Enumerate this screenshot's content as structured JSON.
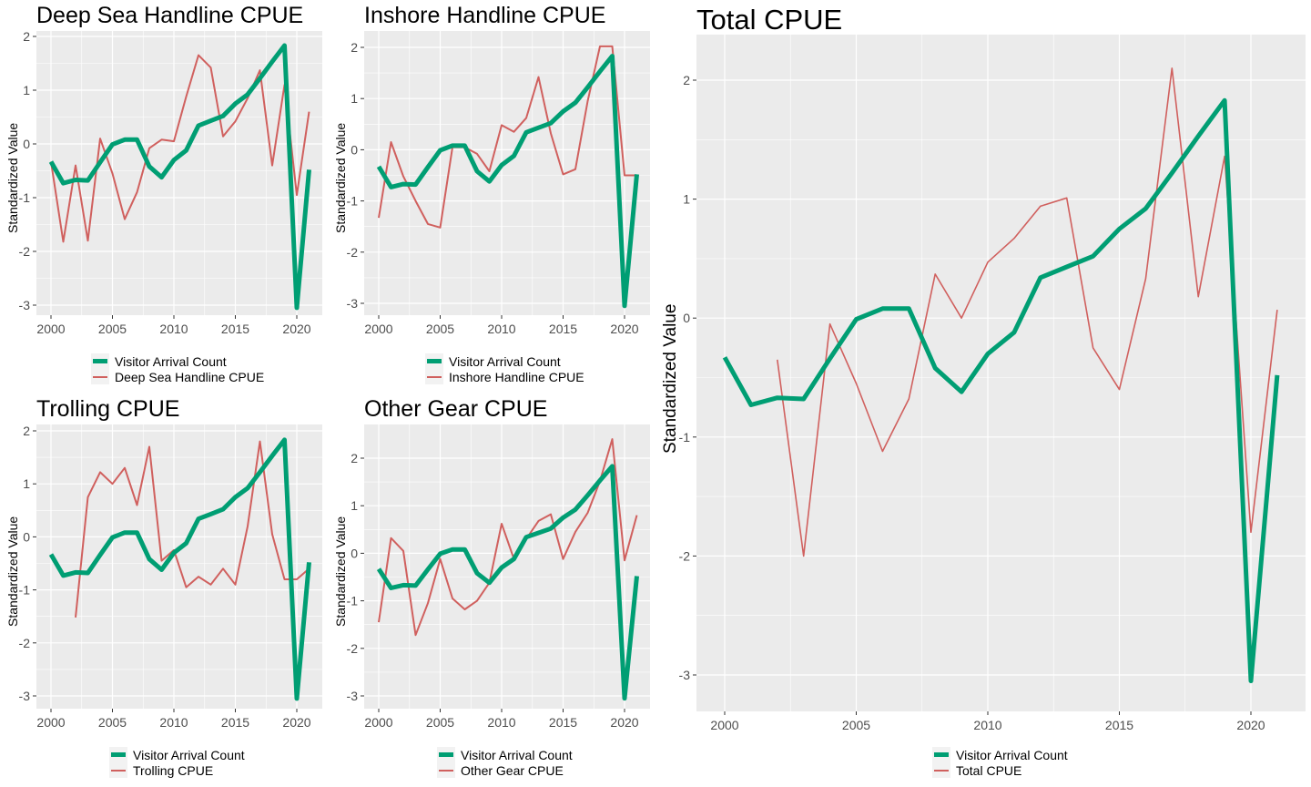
{
  "colors": {
    "visitor": "#009e73",
    "cpue": "#d0605e",
    "panel_bg": "#ebebeb",
    "grid": "#ffffff"
  },
  "ylabel": "Standardized Value",
  "visitor_legend": "Visitor Arrival Count",
  "chart_data": [
    {
      "type": "line",
      "title": "Deep Sea Handline CPUE",
      "ylabel": "Standardized Value",
      "xlim": [
        2000,
        2021
      ],
      "ylim": [
        -3.05,
        1.85
      ],
      "x_ticks": [
        2000,
        2005,
        2010,
        2015,
        2020
      ],
      "y_ticks": [
        -3,
        -2,
        -1,
        0,
        1,
        2
      ],
      "legend_position": "bottom",
      "series": [
        {
          "name": "Visitor Arrival Count",
          "x": [
            2000,
            2001,
            2002,
            2003,
            2004,
            2005,
            2006,
            2007,
            2008,
            2009,
            2010,
            2011,
            2012,
            2013,
            2014,
            2015,
            2016,
            2017,
            2018,
            2019,
            2020,
            2021
          ],
          "values": [
            -0.33,
            -0.73,
            -0.67,
            -0.68,
            -0.34,
            -0.01,
            0.08,
            0.08,
            -0.42,
            -0.62,
            -0.3,
            -0.12,
            0.34,
            0.43,
            0.52,
            0.75,
            0.92,
            1.22,
            1.53,
            1.83,
            -3.05,
            -0.48
          ]
        },
        {
          "name": "Deep Sea Handline CPUE",
          "x": [
            2000,
            2001,
            2002,
            2003,
            2004,
            2005,
            2006,
            2007,
            2008,
            2009,
            2010,
            2011,
            2012,
            2013,
            2014,
            2015,
            2016,
            2017,
            2018,
            2019,
            2020,
            2021
          ],
          "values": [
            -0.33,
            -1.82,
            -0.4,
            -1.8,
            0.1,
            -0.55,
            -1.4,
            -0.9,
            -0.08,
            0.08,
            0.05,
            0.88,
            1.65,
            1.42,
            0.14,
            0.42,
            0.85,
            1.37,
            -0.4,
            1.1,
            -0.95,
            0.6
          ]
        }
      ]
    },
    {
      "type": "line",
      "title": "Inshore Handline CPUE",
      "ylabel": "Standardized Value",
      "xlim": [
        2000,
        2021
      ],
      "ylim": [
        -3.05,
        2.02
      ],
      "x_ticks": [
        2000,
        2005,
        2010,
        2015,
        2020
      ],
      "y_ticks": [
        -3,
        -2,
        -1,
        0,
        1,
        2
      ],
      "legend_position": "bottom",
      "series": [
        {
          "name": "Visitor Arrival Count",
          "x": [
            2000,
            2001,
            2002,
            2003,
            2004,
            2005,
            2006,
            2007,
            2008,
            2009,
            2010,
            2011,
            2012,
            2013,
            2014,
            2015,
            2016,
            2017,
            2018,
            2019,
            2020,
            2021
          ],
          "values": [
            -0.33,
            -0.73,
            -0.67,
            -0.68,
            -0.34,
            -0.01,
            0.08,
            0.08,
            -0.42,
            -0.62,
            -0.3,
            -0.12,
            0.34,
            0.43,
            0.52,
            0.75,
            0.92,
            1.22,
            1.53,
            1.83,
            -3.05,
            -0.48
          ]
        },
        {
          "name": "Inshore Handline CPUE",
          "x": [
            2000,
            2001,
            2002,
            2003,
            2004,
            2005,
            2006,
            2007,
            2008,
            2009,
            2010,
            2011,
            2012,
            2013,
            2014,
            2015,
            2016,
            2017,
            2018,
            2019,
            2020,
            2021
          ],
          "values": [
            -1.33,
            0.15,
            -0.52,
            -1.0,
            -1.45,
            -1.52,
            0.05,
            0.05,
            -0.08,
            -0.42,
            0.48,
            0.35,
            0.62,
            1.42,
            0.32,
            -0.48,
            -0.38,
            0.95,
            2.02,
            2.02,
            -0.5,
            -0.5
          ]
        }
      ]
    },
    {
      "type": "line",
      "title": "Trolling CPUE",
      "ylabel": "Standardized Value",
      "xlim": [
        2000,
        2021
      ],
      "ylim": [
        -3.05,
        1.85
      ],
      "x_ticks": [
        2000,
        2005,
        2010,
        2015,
        2020
      ],
      "y_ticks": [
        -3,
        -2,
        -1,
        0,
        1,
        2
      ],
      "legend_position": "bottom",
      "series": [
        {
          "name": "Visitor Arrival Count",
          "x": [
            2000,
            2001,
            2002,
            2003,
            2004,
            2005,
            2006,
            2007,
            2008,
            2009,
            2010,
            2011,
            2012,
            2013,
            2014,
            2015,
            2016,
            2017,
            2018,
            2019,
            2020,
            2021
          ],
          "values": [
            -0.33,
            -0.73,
            -0.67,
            -0.68,
            -0.34,
            -0.01,
            0.08,
            0.08,
            -0.42,
            -0.62,
            -0.3,
            -0.12,
            0.34,
            0.43,
            0.52,
            0.75,
            0.92,
            1.22,
            1.53,
            1.83,
            -3.05,
            -0.48
          ]
        },
        {
          "name": "Trolling CPUE",
          "x": [
            2002,
            2003,
            2004,
            2005,
            2006,
            2007,
            2008,
            2009,
            2010,
            2011,
            2012,
            2013,
            2014,
            2015,
            2016,
            2017,
            2018,
            2019,
            2020,
            2021
          ],
          "values": [
            -1.52,
            0.75,
            1.22,
            1.0,
            1.3,
            0.6,
            1.7,
            -0.45,
            -0.25,
            -0.95,
            -0.75,
            -0.9,
            -0.6,
            -0.9,
            0.2,
            1.8,
            0.05,
            -0.8,
            -0.8,
            -0.6
          ]
        }
      ]
    },
    {
      "type": "line",
      "title": "Other Gear CPUE",
      "ylabel": "Standardized Value",
      "xlim": [
        2000,
        2021
      ],
      "ylim": [
        -3.05,
        2.4
      ],
      "x_ticks": [
        2000,
        2005,
        2010,
        2015,
        2020
      ],
      "y_ticks": [
        -3,
        -2,
        -1,
        0,
        1,
        2
      ],
      "legend_position": "bottom",
      "series": [
        {
          "name": "Visitor Arrival Count",
          "x": [
            2000,
            2001,
            2002,
            2003,
            2004,
            2005,
            2006,
            2007,
            2008,
            2009,
            2010,
            2011,
            2012,
            2013,
            2014,
            2015,
            2016,
            2017,
            2018,
            2019,
            2020,
            2021
          ],
          "values": [
            -0.33,
            -0.73,
            -0.67,
            -0.68,
            -0.34,
            -0.01,
            0.08,
            0.08,
            -0.42,
            -0.62,
            -0.3,
            -0.12,
            0.34,
            0.43,
            0.52,
            0.75,
            0.92,
            1.22,
            1.53,
            1.83,
            -3.05,
            -0.48
          ]
        },
        {
          "name": "Other Gear CPUE",
          "x": [
            2000,
            2001,
            2002,
            2003,
            2004,
            2005,
            2006,
            2007,
            2008,
            2009,
            2010,
            2011,
            2012,
            2013,
            2014,
            2015,
            2016,
            2017,
            2018,
            2019,
            2020,
            2021
          ],
          "values": [
            -1.45,
            0.32,
            0.05,
            -1.72,
            -1.05,
            -0.12,
            -0.95,
            -1.18,
            -1.0,
            -0.62,
            0.62,
            -0.12,
            0.3,
            0.68,
            0.82,
            -0.12,
            0.45,
            0.85,
            1.52,
            2.4,
            -0.15,
            0.8
          ]
        }
      ]
    },
    {
      "type": "line",
      "title": "Total CPUE",
      "ylabel": "Standardized Value",
      "xlim": [
        2000,
        2021
      ],
      "ylim": [
        -3.05,
        2.1
      ],
      "x_ticks": [
        2000,
        2005,
        2010,
        2015,
        2020
      ],
      "y_ticks": [
        -3,
        -2,
        -1,
        0,
        1,
        2
      ],
      "legend_position": "bottom",
      "series": [
        {
          "name": "Visitor Arrival Count",
          "x": [
            2000,
            2001,
            2002,
            2003,
            2004,
            2005,
            2006,
            2007,
            2008,
            2009,
            2010,
            2011,
            2012,
            2013,
            2014,
            2015,
            2016,
            2017,
            2018,
            2019,
            2020,
            2021
          ],
          "values": [
            -0.33,
            -0.73,
            -0.67,
            -0.68,
            -0.34,
            -0.01,
            0.08,
            0.08,
            -0.42,
            -0.62,
            -0.3,
            -0.12,
            0.34,
            0.43,
            0.52,
            0.75,
            0.92,
            1.22,
            1.53,
            1.83,
            -3.05,
            -0.48
          ]
        },
        {
          "name": "Total CPUE",
          "x": [
            2002,
            2003,
            2004,
            2005,
            2006,
            2007,
            2008,
            2009,
            2010,
            2011,
            2012,
            2013,
            2014,
            2015,
            2016,
            2017,
            2018,
            2019,
            2020,
            2021
          ],
          "values": [
            -0.35,
            -2.0,
            -0.05,
            -0.55,
            -1.12,
            -0.68,
            0.37,
            0.0,
            0.47,
            0.67,
            0.94,
            1.01,
            -0.25,
            -0.6,
            0.33,
            2.1,
            0.18,
            1.36,
            -1.8,
            0.07
          ]
        }
      ]
    }
  ]
}
